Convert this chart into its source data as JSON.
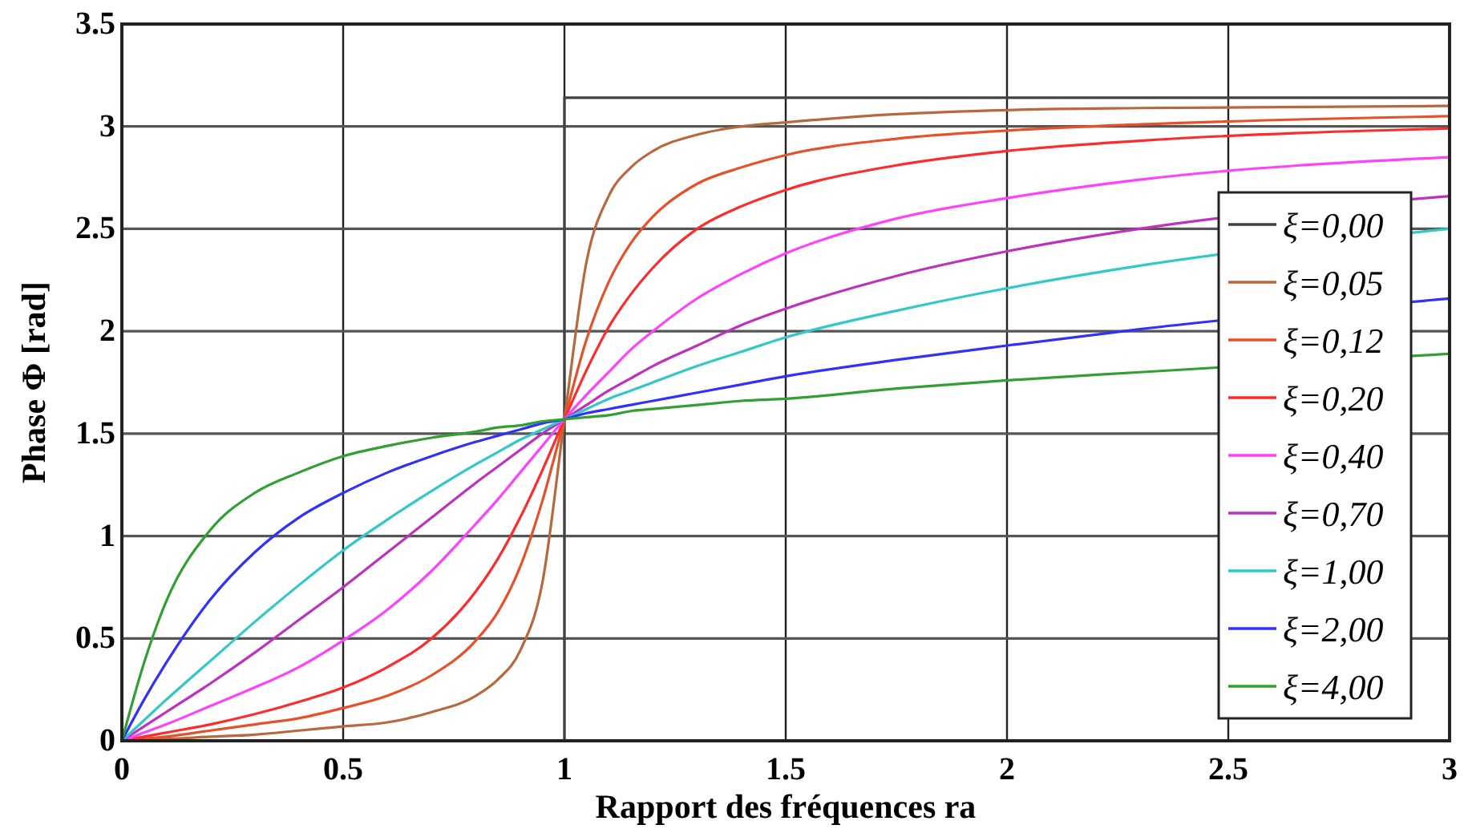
{
  "chart_data": {
    "type": "line",
    "xlabel": "Rapport des fréquences ra",
    "ylabel": "Phase Φ [rad]",
    "x": [
      0,
      0.05,
      0.1,
      0.2,
      0.3,
      0.4,
      0.5,
      0.6,
      0.7,
      0.8,
      0.85,
      0.9,
      0.95,
      1,
      1.05,
      1.1,
      1.15,
      1.2,
      1.3,
      1.4,
      1.5,
      1.75,
      2,
      2.3,
      3
    ],
    "xlim": [
      0,
      3
    ],
    "xticks": [
      0,
      0.5,
      1,
      1.5,
      2,
      2.5,
      3
    ],
    "ylim": [
      0,
      3.5
    ],
    "yticks": [
      0,
      0.5,
      1,
      1.5,
      2,
      2.5,
      3,
      3.5
    ],
    "grid": true,
    "legend": "right",
    "line_style": "solid",
    "marker": "none",
    "series": [
      {
        "name": "ξ=0,00",
        "color": "#404040",
        "x": [
          0,
          1,
          1,
          3
        ],
        "values": [
          0,
          0,
          3.14,
          3.14
        ]
      },
      {
        "name": "ξ=0,05",
        "color": "#b8683a",
        "values": [
          0,
          0.01,
          0.01,
          0.02,
          0.03,
          0.05,
          0.07,
          0.09,
          0.14,
          0.22,
          0.3,
          0.44,
          0.77,
          1.57,
          2.34,
          2.66,
          2.8,
          2.88,
          2.96,
          3,
          3.02,
          3.06,
          3.08,
          3.09,
          3.1
        ]
      },
      {
        "name": "ξ=0,12",
        "color": "#e8502a",
        "values": [
          0,
          0.01,
          0.02,
          0.05,
          0.08,
          0.11,
          0.16,
          0.22,
          0.32,
          0.49,
          0.63,
          0.85,
          1.17,
          1.57,
          1.96,
          2.24,
          2.43,
          2.56,
          2.72,
          2.8,
          2.86,
          2.94,
          2.98,
          3.01,
          3.05
        ]
      },
      {
        "name": "ξ=0,20",
        "color": "#ff2a2a",
        "values": [
          0,
          0.02,
          0.04,
          0.08,
          0.13,
          0.19,
          0.26,
          0.36,
          0.5,
          0.73,
          0.89,
          1.09,
          1.32,
          1.57,
          1.81,
          2.02,
          2.18,
          2.31,
          2.5,
          2.61,
          2.69,
          2.81,
          2.88,
          2.93,
          2.99
        ]
      },
      {
        "name": "ξ=0,40",
        "color": "#ff40ff",
        "values": [
          0,
          0.04,
          0.08,
          0.17,
          0.26,
          0.36,
          0.49,
          0.64,
          0.83,
          1.06,
          1.18,
          1.31,
          1.44,
          1.57,
          1.69,
          1.8,
          1.91,
          2,
          2.16,
          2.28,
          2.38,
          2.55,
          2.65,
          2.74,
          2.85
        ]
      },
      {
        "name": "ξ=0,70",
        "color": "#c030c0",
        "values": [
          0,
          0.07,
          0.14,
          0.28,
          0.43,
          0.59,
          0.75,
          0.92,
          1.09,
          1.26,
          1.34,
          1.42,
          1.5,
          1.57,
          1.64,
          1.71,
          1.77,
          1.83,
          1.93,
          2.03,
          2.11,
          2.27,
          2.39,
          2.5,
          2.66
        ]
      },
      {
        "name": "ξ=1,00",
        "color": "#30c8c8",
        "values": [
          0,
          0.1,
          0.2,
          0.39,
          0.58,
          0.76,
          0.93,
          1.08,
          1.22,
          1.35,
          1.41,
          1.47,
          1.52,
          1.57,
          1.62,
          1.67,
          1.71,
          1.75,
          1.83,
          1.9,
          1.97,
          2.1,
          2.21,
          2.32,
          2.5
        ]
      },
      {
        "name": "ξ=2,00",
        "color": "#3030ff",
        "values": [
          0,
          0.2,
          0.38,
          0.69,
          0.92,
          1.09,
          1.21,
          1.31,
          1.39,
          1.46,
          1.49,
          1.52,
          1.55,
          1.57,
          1.6,
          1.62,
          1.64,
          1.66,
          1.7,
          1.74,
          1.78,
          1.86,
          1.93,
          2.01,
          2.16
        ]
      },
      {
        "name": "ξ=4,00",
        "color": "#30a030",
        "values": [
          0,
          0.38,
          0.68,
          1.03,
          1.21,
          1.31,
          1.39,
          1.44,
          1.48,
          1.51,
          1.53,
          1.54,
          1.56,
          1.57,
          1.58,
          1.59,
          1.61,
          1.62,
          1.64,
          1.66,
          1.67,
          1.72,
          1.76,
          1.8,
          1.89
        ]
      }
    ]
  }
}
